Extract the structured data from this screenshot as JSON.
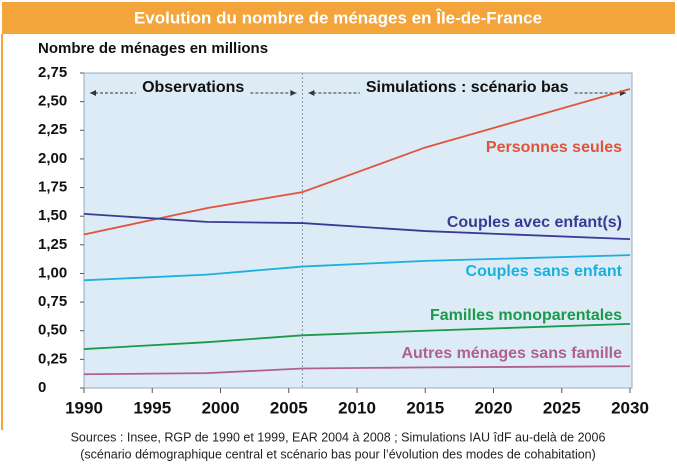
{
  "chart_data": {
    "type": "line",
    "title": "Evolution du nombre de ménages en Île-de-France",
    "subtitle": "Nombre de ménages en millions",
    "x": [
      1990,
      1999,
      2006,
      2015,
      2030
    ],
    "xlim": [
      1990,
      2030
    ],
    "xticks": [
      1990,
      1995,
      2000,
      2005,
      2010,
      2015,
      2020,
      2025,
      2030
    ],
    "ylim": [
      0,
      2.75
    ],
    "yticks": [
      0,
      {
        "value": 0.25,
        "label": "0,25"
      },
      {
        "value": 0.5,
        "label": "0,50"
      },
      {
        "value": 0.75,
        "label": "0,75"
      },
      {
        "value": 1,
        "label": "1,00"
      },
      {
        "value": 1.25,
        "label": "1,25"
      },
      {
        "value": 1.5,
        "label": "1,50"
      },
      {
        "value": 1.75,
        "label": "1,75"
      },
      {
        "value": 2,
        "label": "2,00"
      },
      {
        "value": 2.25,
        "label": "2,25"
      },
      {
        "value": 2.5,
        "label": "2,50"
      },
      {
        "value": 2.75,
        "label": "2,75"
      }
    ],
    "divider_x": 2006,
    "annotations": [
      "Observations",
      "Simulations : scénario bas"
    ],
    "series": [
      {
        "name": "Personnes seules",
        "color": "#e0553a",
        "values": [
          1.34,
          1.57,
          1.71,
          2.1,
          2.61
        ]
      },
      {
        "name": "Couples avec enfant(s)",
        "color": "#3a3a96",
        "values": [
          1.52,
          1.45,
          1.44,
          1.37,
          1.3
        ]
      },
      {
        "name": "Couples sans enfant",
        "color": "#1ab0e0",
        "values": [
          0.94,
          0.99,
          1.06,
          1.11,
          1.16
        ]
      },
      {
        "name": "Familles monoparentales",
        "color": "#1a9a4a",
        "values": [
          0.34,
          0.4,
          0.46,
          0.5,
          0.56
        ]
      },
      {
        "name": "Autres ménages sans famille",
        "color": "#b06090",
        "values": [
          0.12,
          0.13,
          0.17,
          0.18,
          0.19
        ]
      }
    ],
    "source": [
      "Sources : Insee, RGP de 1990 et 1999, EAR 2004 à 2008 ; Simulations IAU îdF au-delà de 2006",
      "(scénario démographique central et scénario bas pour l’évolution des modes de cohabitation)"
    ]
  }
}
